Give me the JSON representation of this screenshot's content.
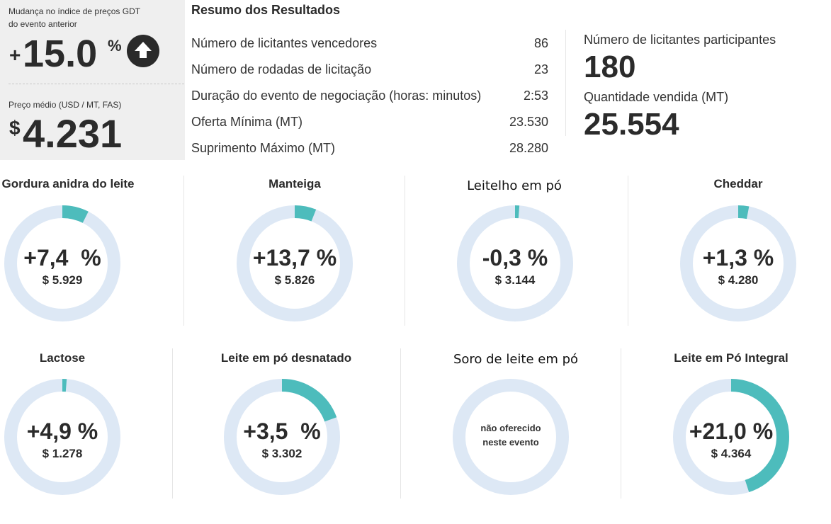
{
  "header": {
    "index_change_label": [
      "Mudança no índice de preços GDT",
      "do evento anterior"
    ],
    "index_change_sign": "+",
    "index_change_value": "15.0",
    "index_change_unit": "%",
    "avg_price_label": "Preço médio (USD / MT, FAS)",
    "avg_price_currency": "$",
    "avg_price_value": "4.231"
  },
  "summary": {
    "title": "Resumo dos Resultados",
    "rows": [
      {
        "label": "Número de licitantes vencedores",
        "value": "86"
      },
      {
        "label": "Número de rodadas de licitação",
        "value": "23"
      },
      {
        "label": "Duração do evento de negociação (horas: minutos)",
        "value": "2:53"
      },
      {
        "label": "Oferta Mínima (MT)",
        "value": "23.530"
      },
      {
        "label": "Suprimento Máximo (MT)",
        "value": "28.280"
      }
    ],
    "participants_label": "Número de licitantes participantes",
    "participants_value": "180",
    "quantity_label": "Quantidade vendida (MT)",
    "quantity_value": "25.554"
  },
  "colors": {
    "accent": "#4dbcbc",
    "track": "#dde8f5"
  },
  "products": [
    {
      "name": "Gordura anidra do leite",
      "change": "+7,4  %",
      "price": "$ 5.929",
      "fraction": 0.074
    },
    {
      "name": "Manteiga",
      "change": "+13,7 %",
      "price": "$ 5.826",
      "fraction": 0.06
    },
    {
      "name": "Leitelho em pó",
      "change": "-0,3 %",
      "price": "$ 3.144",
      "fraction": 0.012
    },
    {
      "name": "Cheddar",
      "change": "+1,3 %",
      "price": "$ 4.280",
      "fraction": 0.03
    },
    {
      "name": "Lactose",
      "change": "+4,9 %",
      "price": "$ 1.278",
      "fraction": 0.012
    },
    {
      "name": "Leite em pó desnatado",
      "change": "+3,5  %",
      "price": "$ 3.302",
      "fraction": 0.195
    },
    {
      "name": "Soro de leite em pó",
      "unavailable": [
        "não oferecido",
        "neste evento"
      ],
      "fraction": 0
    },
    {
      "name": "Leite em Pó Integral",
      "change": "+21,0 %",
      "price": "$ 4.364",
      "fraction": 0.45
    }
  ]
}
